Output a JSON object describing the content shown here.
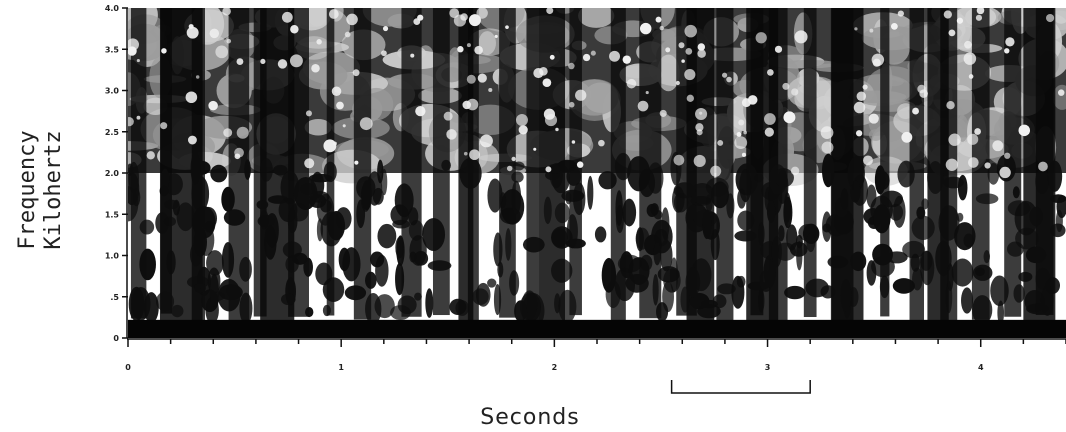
{
  "chart_data": {
    "type": "heatmap",
    "title": "",
    "ylabel_line1": "Frequency",
    "ylabel_line2": "Kilohertz",
    "xlabel": "Seconds",
    "y_ticks": [
      "0",
      ".5",
      "1.0",
      "1.5",
      "2.0",
      "2.5",
      "3.0",
      "3.5",
      "4.0"
    ],
    "y_tick_values": [
      0,
      0.5,
      1.0,
      1.5,
      2.0,
      2.5,
      3.0,
      3.5,
      4.0
    ],
    "x_ticks": [
      "0",
      "1",
      "2",
      "3",
      "4"
    ],
    "x_tick_values": [
      0,
      1,
      2,
      3,
      4
    ],
    "xlim": [
      0,
      4.4
    ],
    "ylim": [
      0,
      4.0
    ],
    "scale_bar_seconds": [
      2.55,
      3.2
    ],
    "grid": false,
    "colormap": "grayscale (dark = high energy)"
  },
  "colors": {
    "ink": "#0b0b0b",
    "paper": "#ffffff",
    "mid": "#8a8a8a"
  }
}
